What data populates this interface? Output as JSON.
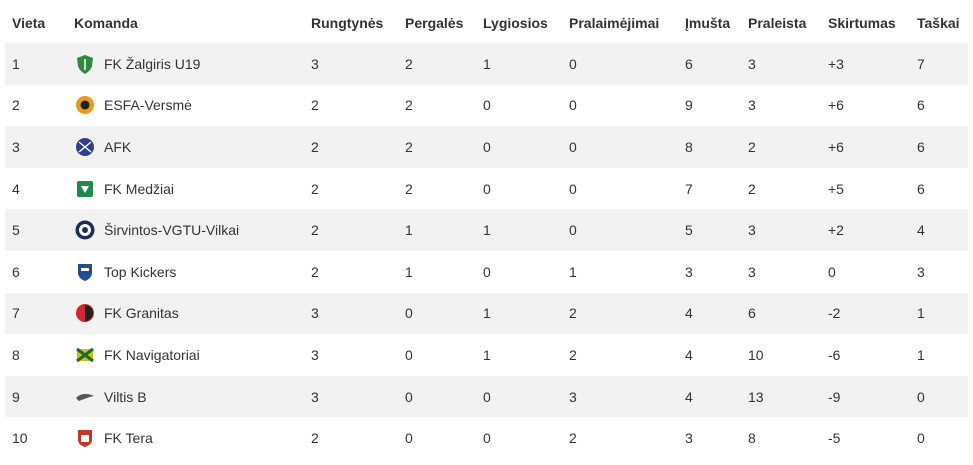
{
  "headers": {
    "place": "Vieta",
    "team": "Komanda",
    "played": "Rungtynės",
    "wins": "Pergalės",
    "draws": "Lygiosios",
    "losses": "Pralaimėjimai",
    "scored": "Įmušta",
    "conceded": "Praleista",
    "diff": "Skirtumas",
    "points": "Taškai"
  },
  "rows": [
    {
      "place": "1",
      "team": "FK Žalgiris U19",
      "logo_icon": "zalgiris-crest-icon",
      "logo_color": "#2e8b3a",
      "played": "3",
      "wins": "2",
      "draws": "1",
      "losses": "0",
      "scored": "6",
      "conceded": "3",
      "diff": "+3",
      "points": "7"
    },
    {
      "place": "2",
      "team": "ESFA-Versmė",
      "logo_icon": "esfa-crest-icon",
      "logo_color": "#e89a1c",
      "played": "2",
      "wins": "2",
      "draws": "0",
      "losses": "0",
      "scored": "9",
      "conceded": "3",
      "diff": "+6",
      "points": "6"
    },
    {
      "place": "3",
      "team": "AFK",
      "logo_icon": "afk-crest-icon",
      "logo_color": "#2c3e8c",
      "played": "2",
      "wins": "2",
      "draws": "0",
      "losses": "0",
      "scored": "8",
      "conceded": "2",
      "diff": "+6",
      "points": "6"
    },
    {
      "place": "4",
      "team": "FK Medžiai",
      "logo_icon": "medziai-crest-icon",
      "logo_color": "#1f8a4c",
      "played": "2",
      "wins": "2",
      "draws": "0",
      "losses": "0",
      "scored": "7",
      "conceded": "2",
      "diff": "+5",
      "points": "6"
    },
    {
      "place": "5",
      "team": "Širvintos-VGTU-Vilkai",
      "logo_icon": "vilkai-crest-icon",
      "logo_color": "#1c2c5a",
      "played": "2",
      "wins": "1",
      "draws": "1",
      "losses": "0",
      "scored": "5",
      "conceded": "3",
      "diff": "+2",
      "points": "4"
    },
    {
      "place": "6",
      "team": "Top Kickers",
      "logo_icon": "top-kickers-crest-icon",
      "logo_color": "#1d4f91",
      "played": "2",
      "wins": "1",
      "draws": "0",
      "losses": "1",
      "scored": "3",
      "conceded": "3",
      "diff": "0",
      "points": "3"
    },
    {
      "place": "7",
      "team": "FK Granitas",
      "logo_icon": "granitas-crest-icon",
      "logo_color": "#d22630",
      "played": "3",
      "wins": "0",
      "draws": "1",
      "losses": "2",
      "scored": "4",
      "conceded": "6",
      "diff": "-2",
      "points": "1"
    },
    {
      "place": "8",
      "team": "FK Navigatoriai",
      "logo_icon": "navigatoriai-crest-icon",
      "logo_color": "#c9c21a",
      "played": "3",
      "wins": "0",
      "draws": "1",
      "losses": "2",
      "scored": "4",
      "conceded": "10",
      "diff": "-6",
      "points": "1"
    },
    {
      "place": "9",
      "team": "Viltis B",
      "logo_icon": "viltis-crest-icon",
      "logo_color": "#555555",
      "played": "3",
      "wins": "0",
      "draws": "0",
      "losses": "3",
      "scored": "4",
      "conceded": "13",
      "diff": "-9",
      "points": "0"
    },
    {
      "place": "10",
      "team": "FK Tera",
      "logo_icon": "tera-crest-icon",
      "logo_color": "#c0392b",
      "played": "2",
      "wins": "0",
      "draws": "0",
      "losses": "2",
      "scored": "3",
      "conceded": "8",
      "diff": "-5",
      "points": "0"
    }
  ]
}
